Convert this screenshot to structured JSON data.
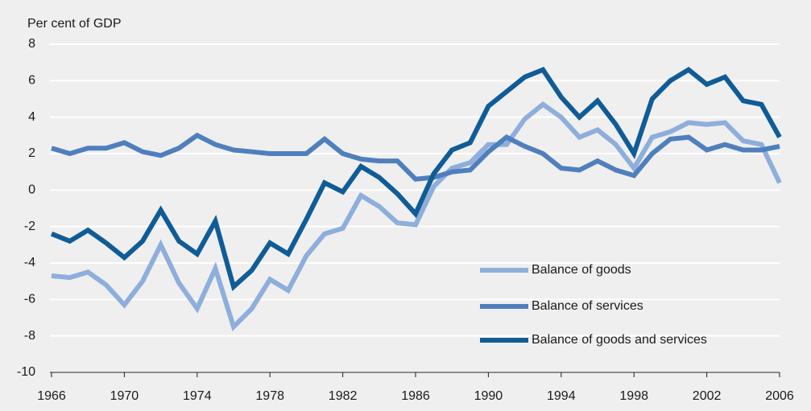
{
  "chart_data": {
    "type": "line",
    "y_axis_label": "Per cent of GDP",
    "x": [
      1966,
      1967,
      1968,
      1969,
      1970,
      1971,
      1972,
      1973,
      1974,
      1975,
      1976,
      1977,
      1978,
      1979,
      1980,
      1981,
      1982,
      1983,
      1984,
      1985,
      1986,
      1987,
      1988,
      1989,
      1990,
      1991,
      1992,
      1993,
      1994,
      1995,
      1996,
      1997,
      1998,
      1999,
      2000,
      2001,
      2002,
      2003,
      2004,
      2005,
      2006
    ],
    "series": [
      {
        "name": "Balance of goods",
        "color": "#8eaedb",
        "values": [
          -4.7,
          -4.8,
          -4.5,
          -5.2,
          -6.3,
          -5.0,
          -3.0,
          -5.1,
          -6.5,
          -4.3,
          -7.5,
          -6.5,
          -4.9,
          -5.5,
          -3.6,
          -2.4,
          -2.1,
          -0.3,
          -0.9,
          -1.8,
          -1.9,
          0.2,
          1.2,
          1.5,
          2.5,
          2.5,
          3.9,
          4.7,
          4.0,
          2.9,
          3.3,
          2.5,
          1.2,
          2.9,
          3.2,
          3.7,
          3.6,
          3.7,
          2.7,
          2.5,
          0.4
        ]
      },
      {
        "name": "Balance of services",
        "color": "#4f7fbd",
        "values": [
          2.3,
          2.0,
          2.3,
          2.3,
          2.6,
          2.1,
          1.9,
          2.3,
          3.0,
          2.5,
          2.2,
          2.1,
          2.0,
          2.0,
          2.0,
          2.8,
          2.0,
          1.7,
          1.6,
          1.6,
          0.6,
          0.7,
          1.0,
          1.1,
          2.1,
          2.9,
          2.4,
          2.0,
          1.2,
          1.1,
          1.6,
          1.1,
          0.8,
          2.0,
          2.8,
          2.9,
          2.2,
          2.5,
          2.2,
          2.2,
          2.4
        ]
      },
      {
        "name": "Balance of goods and services",
        "color": "#0f5c97",
        "values": [
          -2.4,
          -2.8,
          -2.2,
          -2.9,
          -3.7,
          -2.8,
          -1.1,
          -2.8,
          -3.5,
          -1.7,
          -5.3,
          -4.4,
          -2.9,
          -3.5,
          -1.6,
          0.4,
          -0.1,
          1.3,
          0.7,
          -0.2,
          -1.3,
          0.9,
          2.2,
          2.6,
          4.6,
          5.4,
          6.2,
          6.6,
          5.1,
          4.0,
          4.9,
          3.6,
          2.0,
          5.0,
          6.0,
          6.6,
          5.8,
          6.2,
          4.9,
          4.7,
          2.9
        ]
      }
    ],
    "xlim": [
      1966,
      2006
    ],
    "xticks": [
      1966,
      1970,
      1974,
      1978,
      1982,
      1986,
      1990,
      1994,
      1998,
      2002,
      2006
    ],
    "ylim": [
      -10,
      8
    ],
    "yticks": [
      -10,
      -8,
      -6,
      -4,
      -2,
      0,
      2,
      4,
      6,
      8
    ],
    "grid": true
  }
}
